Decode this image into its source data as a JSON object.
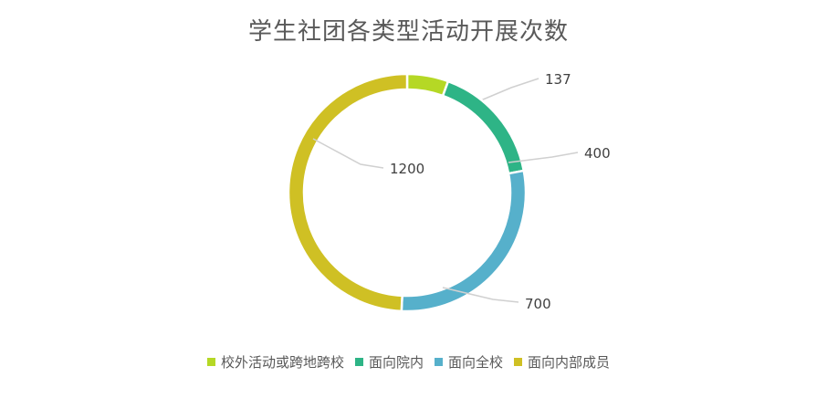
{
  "chart_data": {
    "type": "pie",
    "title": "学生社团各类型活动开展次数",
    "categories": [
      "校外活动或跨地跨校",
      "面向院内",
      "面向全校",
      "面向内部成员"
    ],
    "values": [
      137,
      400,
      700,
      1200
    ],
    "colors": [
      "#b5d825",
      "#2eb486",
      "#56b0cb",
      "#cfc024"
    ],
    "donut": true,
    "legend_position": "bottom"
  }
}
